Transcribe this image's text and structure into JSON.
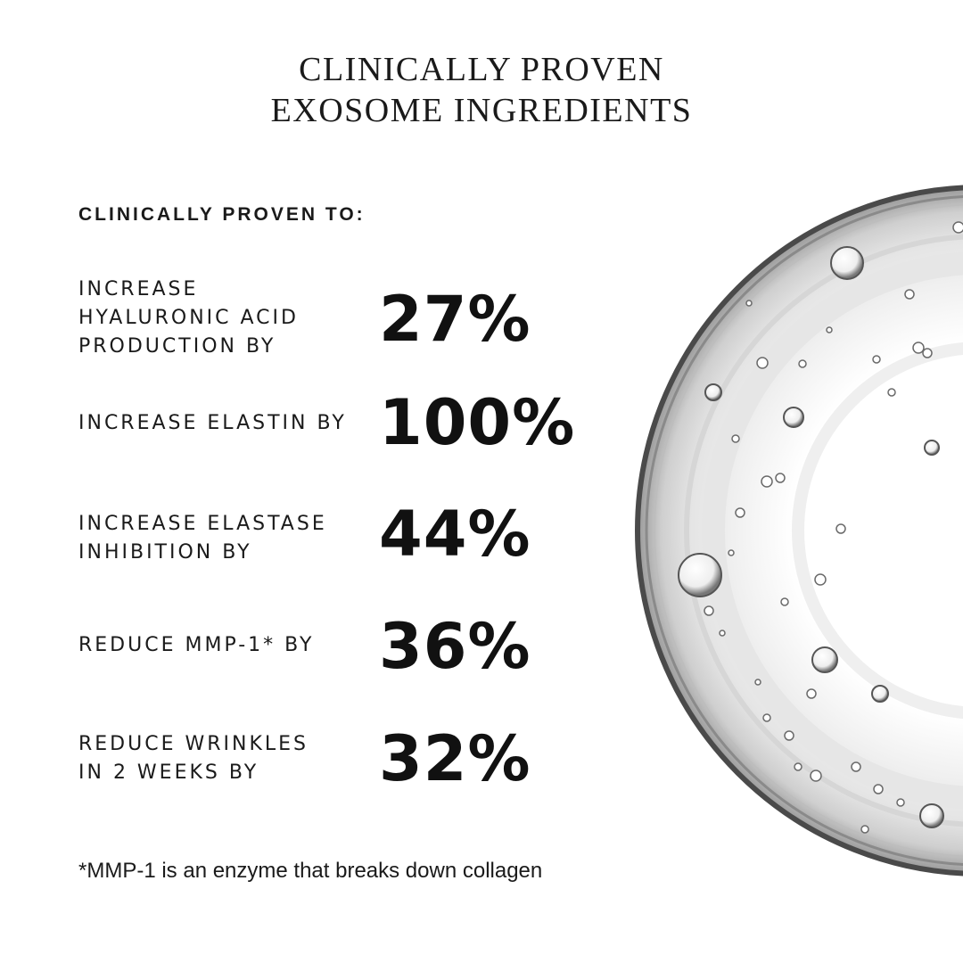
{
  "title": {
    "line1": "CLINICALLY PROVEN",
    "line2": "EXOSOME INGREDIENTS"
  },
  "subheading": "CLINICALLY PROVEN TO:",
  "stats": [
    {
      "label": "INCREASE\nHYALURONIC ACID\nPRODUCTION BY",
      "value": "27%"
    },
    {
      "label": "INCREASE ELASTIN BY",
      "value": "100%"
    },
    {
      "label": "INCREASE ELASTASE\nINHIBITION BY",
      "value": "44%"
    },
    {
      "label": "REDUCE MMP-1* BY",
      "value": "36%"
    },
    {
      "label": "REDUCE WRINKLES\nIN 2 WEEKS BY",
      "value": "32%"
    }
  ],
  "footnote": "*MMP-1 is an enzyme that breaks down collagen",
  "image": {
    "subject": "serum-droplet-image"
  },
  "colors": {
    "text": "#111111",
    "background": "#ffffff"
  }
}
